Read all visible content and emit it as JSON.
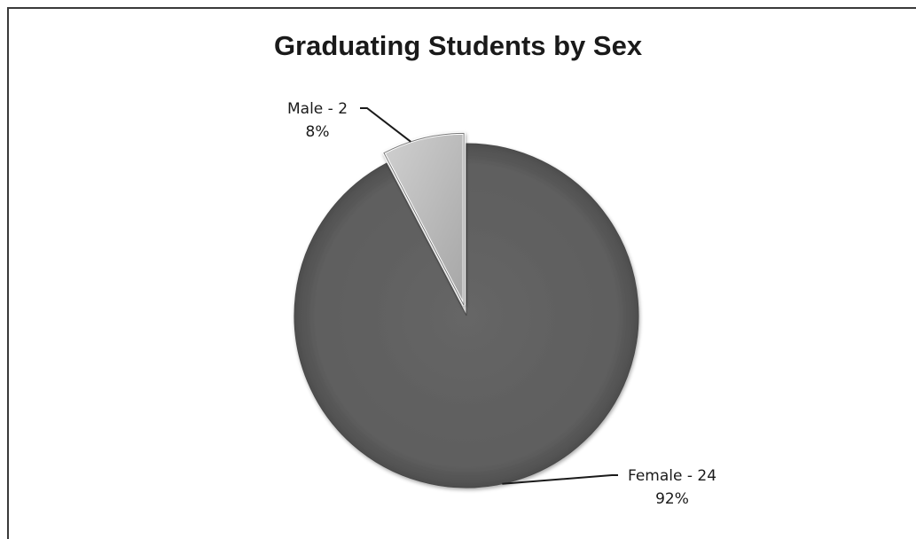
{
  "chart_data": {
    "type": "pie",
    "title": "Graduating Students by Sex",
    "slices": [
      {
        "name": "Male",
        "value": 2,
        "percent": "8%",
        "label_line1": "Male - 2",
        "label_line2": "8%",
        "color": "#b8b8b8",
        "exploded": true
      },
      {
        "name": "Female",
        "value": 24,
        "percent": "92%",
        "label_line1": "Female - 24",
        "label_line2": "92%",
        "color": "#5f5f5f",
        "exploded": false
      }
    ],
    "legend": "none"
  }
}
